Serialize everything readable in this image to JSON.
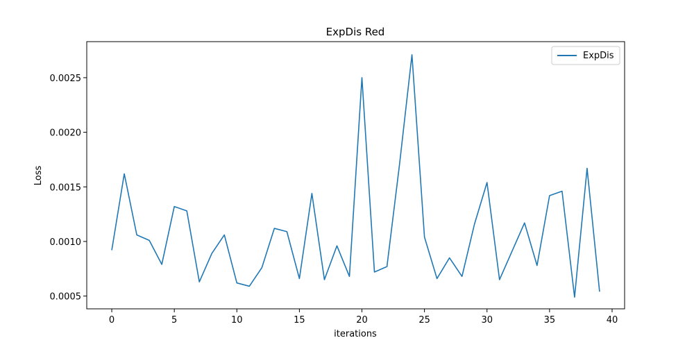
{
  "chart_data": {
    "type": "line",
    "title": "ExpDis Red",
    "xlabel": "iterations",
    "ylabel": "Loss",
    "xlim": [
      -2,
      41
    ],
    "ylim": [
      0.000383,
      0.00283
    ],
    "xticks": [
      0,
      5,
      10,
      15,
      20,
      25,
      30,
      35,
      40
    ],
    "xtick_labels": [
      "0",
      "5",
      "10",
      "15",
      "20",
      "25",
      "30",
      "35",
      "40"
    ],
    "yticks": [
      0.0005,
      0.001,
      0.0015,
      0.002,
      0.0025
    ],
    "ytick_labels": [
      "0.0005",
      "0.0010",
      "0.0015",
      "0.0020",
      "0.0025"
    ],
    "grid": false,
    "legend_position": "top-right",
    "series": [
      {
        "name": "ExpDis",
        "color": "#1f77b4",
        "x": [
          0,
          1,
          2,
          3,
          4,
          5,
          6,
          7,
          8,
          9,
          10,
          11,
          12,
          13,
          14,
          15,
          16,
          17,
          18,
          19,
          20,
          21,
          22,
          23,
          24,
          25,
          26,
          27,
          28,
          29,
          30,
          31,
          32,
          33,
          34,
          35,
          36,
          37,
          38,
          39
        ],
        "y": [
          0.00092,
          0.00162,
          0.00106,
          0.00101,
          0.00079,
          0.00132,
          0.00128,
          0.00063,
          0.00089,
          0.00106,
          0.00062,
          0.00059,
          0.00076,
          0.00112,
          0.00109,
          0.00066,
          0.00144,
          0.00065,
          0.00096,
          0.00068,
          0.0025,
          0.00072,
          0.00077,
          0.0017,
          0.00271,
          0.00104,
          0.00066,
          0.00085,
          0.00068,
          0.00116,
          0.00154,
          0.00065,
          0.00091,
          0.00117,
          0.00078,
          0.00142,
          0.00146,
          0.00049,
          0.00167,
          0.00054
        ]
      }
    ]
  }
}
